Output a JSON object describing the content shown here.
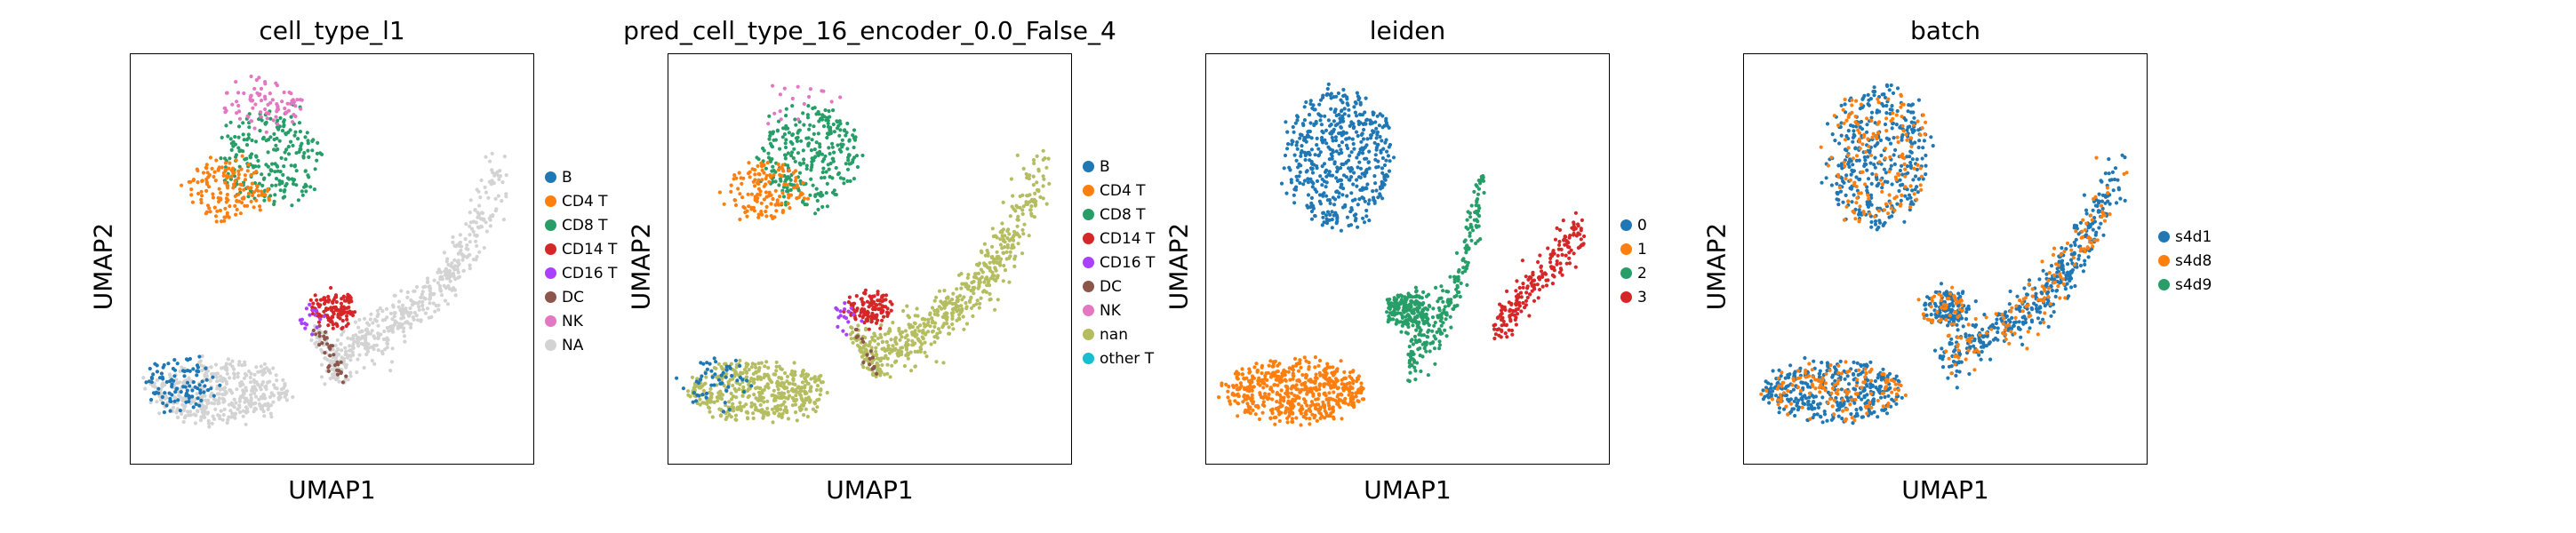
{
  "chart_data": [
    {
      "type": "scatter",
      "title": "cell_type_l1",
      "xlabel": "UMAP1",
      "ylabel": "UMAP2",
      "grid": false,
      "legend_placement": "right",
      "categories": [
        {
          "label": "B",
          "color": "#1f77b4",
          "share": 0.06
        },
        {
          "label": "CD4 T",
          "color": "#ff7f0e",
          "share": 0.09
        },
        {
          "label": "CD8 T",
          "color": "#279e68",
          "share": 0.14
        },
        {
          "label": "CD14 T",
          "color": "#d62728",
          "share": 0.07
        },
        {
          "label": "CD16 T",
          "color": "#aa40fc",
          "share": 0.01
        },
        {
          "label": "DC",
          "color": "#8c564b",
          "share": 0.02
        },
        {
          "label": "NK",
          "color": "#e377c2",
          "share": 0.05
        },
        {
          "label": "NA",
          "color": "#d3d3d3",
          "share": 0.56
        }
      ]
    },
    {
      "type": "scatter",
      "title": "pred_cell_type_16_encoder_0.0_False_4",
      "xlabel": "UMAP1",
      "ylabel": "UMAP2",
      "grid": false,
      "legend_placement": "right",
      "categories": [
        {
          "label": "B",
          "color": "#1f77b4",
          "share": 0.03
        },
        {
          "label": "CD4 T",
          "color": "#ff7f0e",
          "share": 0.08
        },
        {
          "label": "CD8 T",
          "color": "#279e68",
          "share": 0.17
        },
        {
          "label": "CD14 T",
          "color": "#d62728",
          "share": 0.07
        },
        {
          "label": "CD16 T",
          "color": "#aa40fc",
          "share": 0.01
        },
        {
          "label": "DC",
          "color": "#8c564b",
          "share": 0.01
        },
        {
          "label": "NK",
          "color": "#e377c2",
          "share": 0.01
        },
        {
          "label": "nan",
          "color": "#b5bd61",
          "share": 0.62
        },
        {
          "label": "other T",
          "color": "#17becf",
          "share": 0.0
        }
      ]
    },
    {
      "type": "scatter",
      "title": "leiden",
      "xlabel": "UMAP1",
      "ylabel": "UMAP2",
      "grid": false,
      "legend_placement": "right",
      "categories": [
        {
          "label": "0",
          "color": "#1f77b4",
          "share": 0.3
        },
        {
          "label": "1",
          "color": "#ff7f0e",
          "share": 0.33
        },
        {
          "label": "2",
          "color": "#279e68",
          "share": 0.25
        },
        {
          "label": "3",
          "color": "#d62728",
          "share": 0.12
        }
      ]
    },
    {
      "type": "scatter",
      "title": "batch",
      "xlabel": "UMAP1",
      "ylabel": "UMAP2",
      "grid": false,
      "legend_placement": "right",
      "categories": [
        {
          "label": "s4d1",
          "color": "#1f77b4",
          "share": 0.72
        },
        {
          "label": "s4d8",
          "color": "#ff7f0e",
          "share": 0.28
        },
        {
          "label": "s4d9",
          "color": "#279e68",
          "share": 0.0
        }
      ]
    }
  ]
}
